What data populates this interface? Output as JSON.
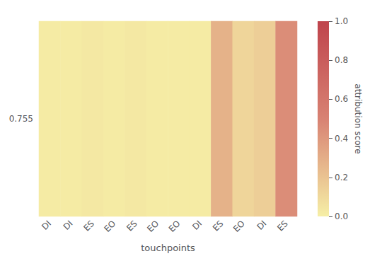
{
  "chart_data": {
    "type": "heatmap",
    "categories": [
      "DI",
      "DI",
      "ES",
      "EO",
      "ES",
      "EO",
      "EO",
      "DI",
      "ES",
      "EO",
      "DI",
      "ES"
    ],
    "y_categories": [
      "0.755"
    ],
    "values": [
      [
        0.02,
        0.02,
        0.03,
        0.02,
        0.03,
        0.02,
        0.02,
        0.02,
        0.28,
        0.12,
        0.15,
        0.45
      ]
    ],
    "xlabel": "touchpoints",
    "colorbar_label": "attribution score",
    "colorbar_range": [
      0.0,
      1.0
    ],
    "colorbar_ticks": [
      {
        "value": 0.0,
        "label": "0.0"
      },
      0.2,
      0.4,
      0.6,
      0.8,
      {
        "value": 1.0,
        "label": "1.0"
      }
    ]
  }
}
